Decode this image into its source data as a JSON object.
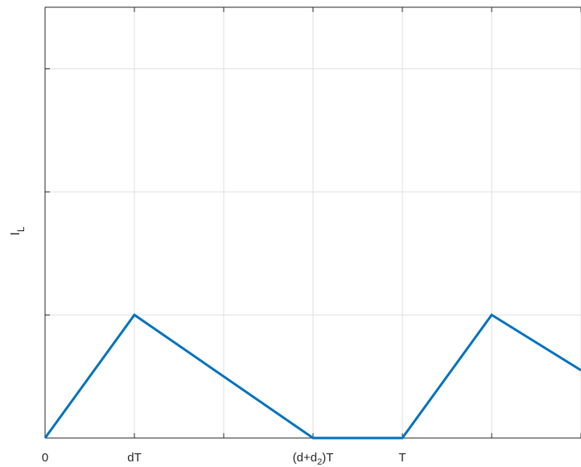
{
  "chart_data": {
    "type": "line",
    "ylabel_main": "I",
    "ylabel_sub": "L",
    "xlabel": "",
    "title": "",
    "xlim": [
      0,
      6
    ],
    "ylim": [
      0,
      3.5
    ],
    "grid": true,
    "x_ticks": [
      0,
      1,
      2,
      3,
      4,
      5,
      6
    ],
    "y_ticks": [
      0,
      1,
      2,
      3,
      4
    ],
    "x_tick_labels": [
      {
        "x": 0,
        "text": "0"
      },
      {
        "x": 1,
        "text": "dT"
      },
      {
        "x": 3,
        "main": "(d+d",
        "sub": "2",
        "tail": ")T"
      },
      {
        "x": 4,
        "text": "T"
      }
    ],
    "series": [
      {
        "color": "#0072BD",
        "x": [
          0,
          1,
          3,
          4,
          5,
          6
        ],
        "y": [
          0,
          1,
          0,
          0,
          1,
          0.55
        ]
      }
    ]
  }
}
